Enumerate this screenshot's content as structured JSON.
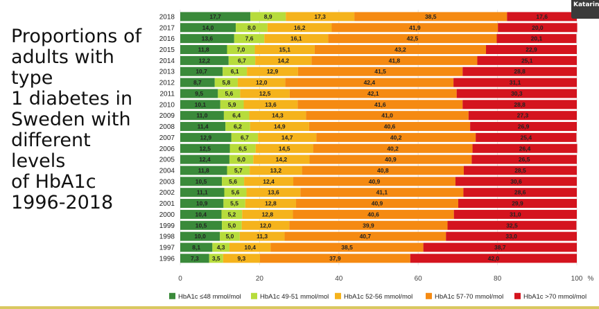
{
  "title": "Proportions of\nadults with type\n1 diabetes in\nSweden with\ndifferent levels\nof HbA1c\n1996-2018",
  "user_badge": "Katarina",
  "chart_data": {
    "type": "bar",
    "orientation": "horizontal",
    "stacked": true,
    "categories": [
      "2018",
      "2017",
      "2016",
      "2015",
      "2014",
      "2013",
      "2012",
      "2011",
      "2010",
      "2009",
      "2008",
      "2007",
      "2006",
      "2005",
      "2004",
      "2003",
      "2002",
      "2001",
      "2000",
      "1999",
      "1998",
      "1997",
      "1996"
    ],
    "series": [
      {
        "name": "HbA1c ≤48 mmol/mol",
        "color": "#3a8a3a",
        "labels": [
          "17,7",
          "14,0",
          "13,6",
          "11,8",
          "12,2",
          "10,7",
          "8,7",
          "9,5",
          "10,1",
          "11,0",
          "11,4",
          "12,9",
          "12,5",
          "12,4",
          "11,8",
          "10,5",
          "11,1",
          "10,9",
          "10,4",
          "10,5",
          "10,0",
          "8,1",
          "7,3"
        ],
        "values": [
          17.7,
          14.0,
          13.6,
          11.8,
          12.2,
          10.7,
          8.7,
          9.5,
          10.1,
          11.0,
          11.4,
          12.9,
          12.5,
          12.4,
          11.8,
          10.5,
          11.1,
          10.9,
          10.4,
          10.5,
          10.0,
          8.1,
          7.3
        ]
      },
      {
        "name": "HbA1c 49-51 mmol/mol",
        "color": "#b7dc3c",
        "labels": [
          "8,9",
          "8,0",
          "7,6",
          "7,0",
          "6,7",
          "6,1",
          "5,8",
          "5,6",
          "5,9",
          "6,4",
          "6,2",
          "6,7",
          "6,5",
          "6,0",
          "5,7",
          "5,6",
          "5,6",
          "5,5",
          "5,2",
          "5,0",
          "5,0",
          "4,3",
          "3,5"
        ],
        "values": [
          8.9,
          8.0,
          7.6,
          7.0,
          6.7,
          6.1,
          5.8,
          5.6,
          5.9,
          6.4,
          6.2,
          6.7,
          6.5,
          6.0,
          5.7,
          5.6,
          5.6,
          5.5,
          5.2,
          5.0,
          5.0,
          4.3,
          3.5
        ]
      },
      {
        "name": "HbA1c 52-56 mmol/mol",
        "color": "#f5b31c",
        "labels": [
          "17,3",
          "16,2",
          "16,1",
          "15,1",
          "14,2",
          "12,9",
          "12,0",
          "12,5",
          "13,6",
          "14,3",
          "14,9",
          "14,7",
          "14,5",
          "14,2",
          "13,2",
          "12,4",
          "13,6",
          "12,8",
          "12,8",
          "12,0",
          "11,3",
          "10,4",
          "9,3"
        ],
        "values": [
          17.3,
          16.2,
          16.1,
          15.1,
          14.2,
          12.9,
          12.0,
          12.5,
          13.6,
          14.3,
          14.9,
          14.7,
          14.5,
          14.2,
          13.2,
          12.4,
          13.6,
          12.8,
          12.8,
          12.0,
          11.3,
          10.4,
          9.3
        ]
      },
      {
        "name": "HbA1c 57-70 mmol/mol",
        "color": "#f58a12",
        "labels": [
          "38,5",
          "41,9",
          "42,5",
          "43,2",
          "41,8",
          "41,5",
          "42,4",
          "42,1",
          "41,6",
          "41,0",
          "40,6",
          "40,2",
          "40,2",
          "40,9",
          "40,8",
          "40,9",
          "41,1",
          "40,9",
          "40,6",
          "39,9",
          "40,7",
          "38,5",
          "37,9"
        ],
        "values": [
          38.5,
          41.9,
          42.5,
          43.2,
          41.8,
          41.5,
          42.4,
          42.1,
          41.6,
          41.0,
          40.6,
          40.2,
          40.2,
          40.9,
          40.8,
          40.9,
          41.1,
          40.9,
          40.6,
          39.9,
          40.7,
          38.5,
          37.9
        ]
      },
      {
        "name": "HbA1c >70 mmol/mol",
        "color": "#d4141e",
        "labels": [
          "17,6",
          "20,0",
          "20,1",
          "22,9",
          "25,1",
          "28,8",
          "31,1",
          "30,3",
          "28,8",
          "27,3",
          "26,9",
          "25,4",
          "26,4",
          "26,5",
          "28,5",
          "30,6",
          "28,6",
          "29,9",
          "31,0",
          "32,5",
          "33,0",
          "38,7",
          "42,0"
        ],
        "values": [
          17.6,
          20.0,
          20.1,
          22.9,
          25.1,
          28.8,
          31.1,
          30.3,
          28.8,
          27.3,
          26.9,
          25.4,
          26.4,
          26.5,
          28.5,
          30.6,
          28.6,
          29.9,
          31.0,
          32.5,
          33.0,
          38.7,
          42.0
        ]
      }
    ],
    "xlim": [
      0,
      100
    ],
    "xticks": [
      "0",
      "20",
      "40",
      "60",
      "80",
      "100"
    ],
    "xunit": "%",
    "legend_position": "bottom",
    "grid": true
  }
}
